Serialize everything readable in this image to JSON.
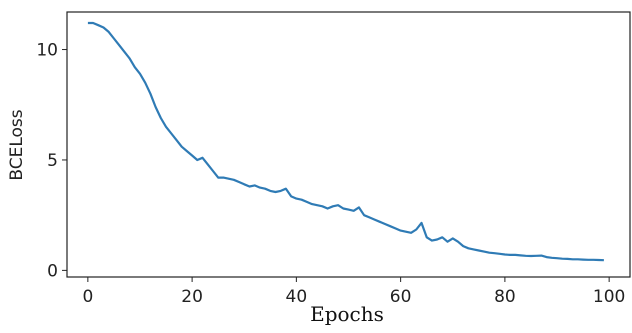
{
  "chart_data": {
    "type": "line",
    "title": "",
    "xlabel": "Epochs",
    "ylabel": "BCELoss",
    "xlim": [
      -4,
      104
    ],
    "ylim": [
      -0.3,
      11.7
    ],
    "x_ticks": [
      0,
      20,
      40,
      60,
      80,
      100
    ],
    "y_ticks": [
      0,
      5,
      10
    ],
    "grid": false,
    "line_color": "#2f7bb5",
    "series": [
      {
        "x": [
          0,
          1,
          2,
          3,
          4,
          5,
          6,
          7,
          8,
          9,
          10,
          11,
          12,
          13,
          14,
          15,
          16,
          17,
          18,
          19,
          20,
          21,
          22,
          23,
          24,
          25,
          26,
          27,
          28,
          29,
          30,
          31,
          32,
          33,
          34,
          35,
          36,
          37,
          38,
          39,
          40,
          41,
          42,
          43,
          44,
          45,
          46,
          47,
          48,
          49,
          50,
          51,
          52,
          53,
          54,
          55,
          56,
          57,
          58,
          59,
          60,
          61,
          62,
          63,
          64,
          65,
          66,
          67,
          68,
          69,
          70,
          71,
          72,
          73,
          74,
          75,
          76,
          77,
          78,
          79,
          80,
          81,
          82,
          83,
          84,
          85,
          86,
          87,
          88,
          89,
          90,
          91,
          92,
          93,
          94,
          95,
          96,
          97,
          98,
          99
        ],
        "values": [
          11.2,
          11.2,
          11.1,
          11.0,
          10.8,
          10.5,
          10.2,
          9.9,
          9.6,
          9.2,
          8.9,
          8.5,
          8.0,
          7.4,
          6.9,
          6.5,
          6.2,
          5.9,
          5.6,
          5.4,
          5.2,
          5.0,
          5.1,
          4.8,
          4.5,
          4.2,
          4.2,
          4.15,
          4.1,
          4.0,
          3.9,
          3.8,
          3.85,
          3.75,
          3.7,
          3.6,
          3.55,
          3.6,
          3.7,
          3.35,
          3.25,
          3.2,
          3.1,
          3.0,
          2.95,
          2.9,
          2.8,
          2.9,
          2.95,
          2.8,
          2.75,
          2.7,
          2.85,
          2.5,
          2.4,
          2.3,
          2.2,
          2.1,
          2.0,
          1.9,
          1.8,
          1.75,
          1.7,
          1.85,
          2.15,
          1.5,
          1.35,
          1.4,
          1.5,
          1.3,
          1.45,
          1.3,
          1.1,
          1.0,
          0.95,
          0.9,
          0.85,
          0.8,
          0.78,
          0.75,
          0.72,
          0.7,
          0.7,
          0.68,
          0.66,
          0.65,
          0.66,
          0.67,
          0.6,
          0.57,
          0.55,
          0.53,
          0.52,
          0.5,
          0.5,
          0.49,
          0.48,
          0.48,
          0.47,
          0.46
        ]
      }
    ]
  }
}
